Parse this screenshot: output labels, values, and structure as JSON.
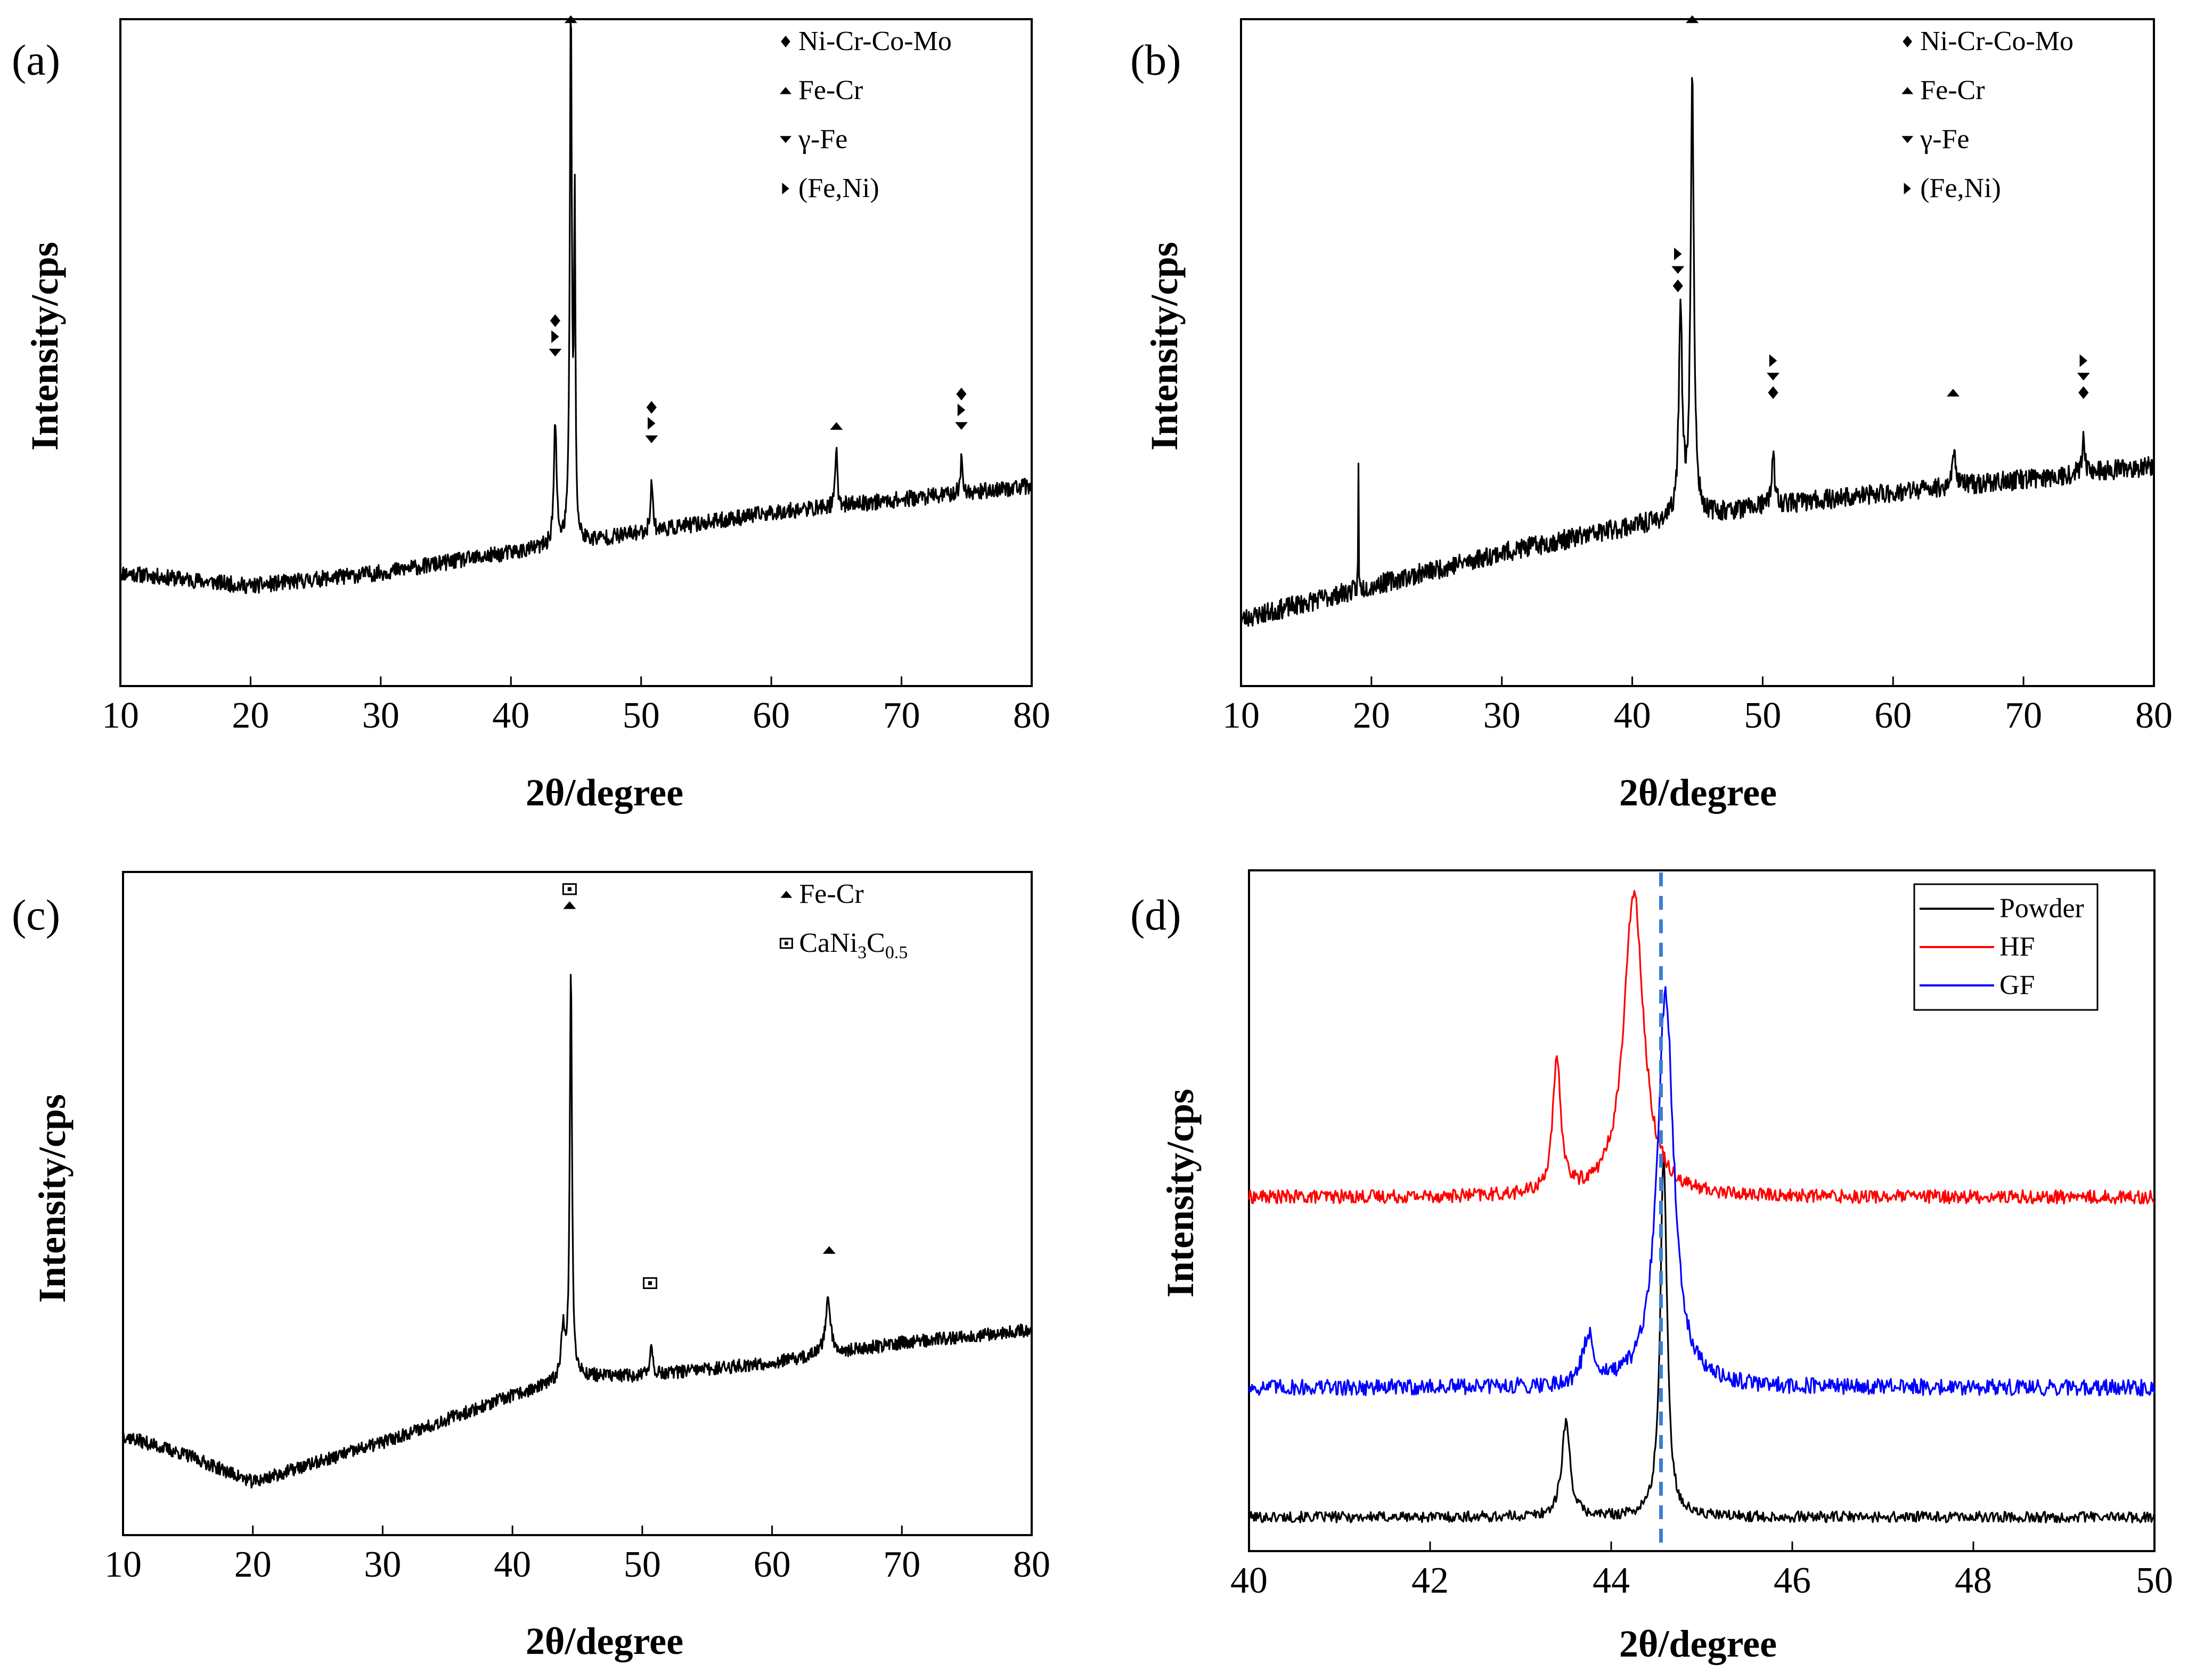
{
  "chart_data": [
    {
      "id": "a",
      "type": "line",
      "panel_label": "(a)",
      "xlabel": "2θ/degree",
      "ylabel": "Intensity/cps",
      "xlim": [
        10,
        80
      ],
      "xticks": [
        "10",
        "20",
        "30",
        "40",
        "50",
        "60",
        "70",
        "80"
      ],
      "ylim": [
        0,
        1
      ],
      "baseline": [
        [
          10,
          0.17
        ],
        [
          20,
          0.15
        ],
        [
          30,
          0.17
        ],
        [
          40,
          0.2
        ],
        [
          50,
          0.23
        ],
        [
          60,
          0.26
        ],
        [
          70,
          0.28
        ],
        [
          80,
          0.3
        ]
      ],
      "peaks": [
        [
          43.4,
          0.18,
          0.25
        ],
        [
          44.6,
          0.82,
          0.18
        ],
        [
          44.9,
          0.5,
          0.12
        ],
        [
          50.8,
          0.08,
          0.2
        ],
        [
          65.0,
          0.09,
          0.18
        ],
        [
          74.6,
          0.05,
          0.2
        ]
      ],
      "noise": 0.012,
      "legend": [
        {
          "marker": "diamond",
          "label": "Ni-Cr-Co-Mo"
        },
        {
          "marker": "up",
          "label": "Fe-Cr"
        },
        {
          "marker": "down",
          "label": "γ-Fe"
        },
        {
          "marker": "right",
          "label": "(Fe,Ni)"
        }
      ],
      "annotations": [
        {
          "x": 43.4,
          "y": 0.5,
          "markers": [
            "down",
            "right",
            "diamond"
          ]
        },
        {
          "x": 44.6,
          "y": 1.0,
          "markers": [
            "up"
          ]
        },
        {
          "x": 50.8,
          "y": 0.37,
          "markers": [
            "down",
            "right",
            "diamond"
          ]
        },
        {
          "x": 65.0,
          "y": 0.39,
          "markers": [
            "up"
          ]
        },
        {
          "x": 74.6,
          "y": 0.39,
          "markers": [
            "down",
            "right",
            "diamond"
          ]
        }
      ]
    },
    {
      "id": "b",
      "type": "line",
      "panel_label": "(b)",
      "xlabel": "2θ/degree",
      "ylabel": "Intensity/cps",
      "xlim": [
        10,
        80
      ],
      "xticks": [
        "10",
        "20",
        "30",
        "40",
        "50",
        "60",
        "70",
        "80"
      ],
      "ylim": [
        0,
        1
      ],
      "baseline": [
        [
          10,
          0.1
        ],
        [
          20,
          0.15
        ],
        [
          30,
          0.2
        ],
        [
          40,
          0.24
        ],
        [
          50,
          0.27
        ],
        [
          60,
          0.29
        ],
        [
          70,
          0.31
        ],
        [
          80,
          0.33
        ]
      ],
      "peaks": [
        [
          19.0,
          0.2,
          0.04
        ],
        [
          43.7,
          0.32,
          0.3
        ],
        [
          44.6,
          0.65,
          0.3
        ],
        [
          50.8,
          0.08,
          0.25
        ],
        [
          64.7,
          0.05,
          0.35
        ],
        [
          74.6,
          0.06,
          0.25
        ]
      ],
      "noise": 0.015,
      "legend": [
        {
          "marker": "diamond",
          "label": "Ni-Cr-Co-Mo"
        },
        {
          "marker": "up",
          "label": "Fe-Cr"
        },
        {
          "marker": "down",
          "label": "γ-Fe"
        },
        {
          "marker": "right",
          "label": "(Fe,Ni)"
        }
      ],
      "annotations": [
        {
          "x": 43.5,
          "y": 0.6,
          "markers": [
            "diamond",
            "down",
            "right"
          ]
        },
        {
          "x": 44.6,
          "y": 1.0,
          "markers": [
            "up"
          ]
        },
        {
          "x": 50.8,
          "y": 0.44,
          "markers": [
            "diamond",
            "down",
            "right"
          ]
        },
        {
          "x": 64.6,
          "y": 0.44,
          "markers": [
            "up"
          ]
        },
        {
          "x": 74.6,
          "y": 0.44,
          "markers": [
            "diamond",
            "down",
            "right"
          ]
        }
      ]
    },
    {
      "id": "c",
      "type": "line",
      "panel_label": "(c)",
      "xlabel": "2θ/degree",
      "ylabel": "Intensity/cps",
      "xlim": [
        10,
        80
      ],
      "xticks": [
        "10",
        "20",
        "30",
        "40",
        "50",
        "60",
        "70",
        "80"
      ],
      "ylim": [
        0,
        1
      ],
      "baseline": [
        [
          10,
          0.15
        ],
        [
          15,
          0.12
        ],
        [
          20,
          0.08
        ],
        [
          30,
          0.14
        ],
        [
          40,
          0.21
        ],
        [
          45,
          0.24
        ],
        [
          50,
          0.24
        ],
        [
          60,
          0.26
        ],
        [
          70,
          0.29
        ],
        [
          80,
          0.31
        ]
      ],
      "peaks": [
        [
          43.9,
          0.08,
          0.35
        ],
        [
          44.5,
          0.62,
          0.2
        ],
        [
          50.7,
          0.05,
          0.25
        ],
        [
          64.3,
          0.08,
          0.5
        ]
      ],
      "noise": 0.01,
      "legend": [
        {
          "marker": "up",
          "label": "Fe-Cr"
        },
        {
          "marker": "boxdot",
          "label": "CaNi",
          "sub1": "3",
          "mid": "C",
          "sub2": "0.5"
        }
      ],
      "annotations": [
        {
          "x": 44.4,
          "y": 0.95,
          "markers": [
            "up",
            "boxdot"
          ]
        },
        {
          "x": 50.6,
          "y": 0.38,
          "markers": [
            "boxdot"
          ]
        },
        {
          "x": 64.4,
          "y": 0.43,
          "markers": [
            "up"
          ]
        }
      ]
    },
    {
      "id": "d",
      "type": "line",
      "panel_label": "(d)",
      "xlabel": "2θ/degree",
      "ylabel": "Intensity/cps",
      "xlim": [
        40,
        50
      ],
      "xticks": [
        "40",
        "42",
        "44",
        "46",
        "48",
        "50"
      ],
      "ylim": [
        0,
        1
      ],
      "reference_line_x": 44.55,
      "series": [
        {
          "name": "Powder",
          "color": "#000000",
          "base": 0.05,
          "noise": 0.008,
          "peaks": [
            [
              43.5,
              0.14,
              0.11
            ],
            [
              44.58,
              0.53,
              0.09
            ]
          ]
        },
        {
          "name": "HF",
          "color": "#ff0000",
          "base": 0.52,
          "noise": 0.01,
          "peaks": [
            [
              43.4,
              0.19,
              0.11
            ],
            [
              44.25,
              0.45,
              0.26
            ]
          ]
        },
        {
          "name": "GF",
          "color": "#0000ff",
          "base": 0.24,
          "noise": 0.012,
          "peaks": [
            [
              43.75,
              0.07,
              0.15
            ],
            [
              44.6,
              0.58,
              0.22
            ]
          ]
        }
      ]
    }
  ]
}
